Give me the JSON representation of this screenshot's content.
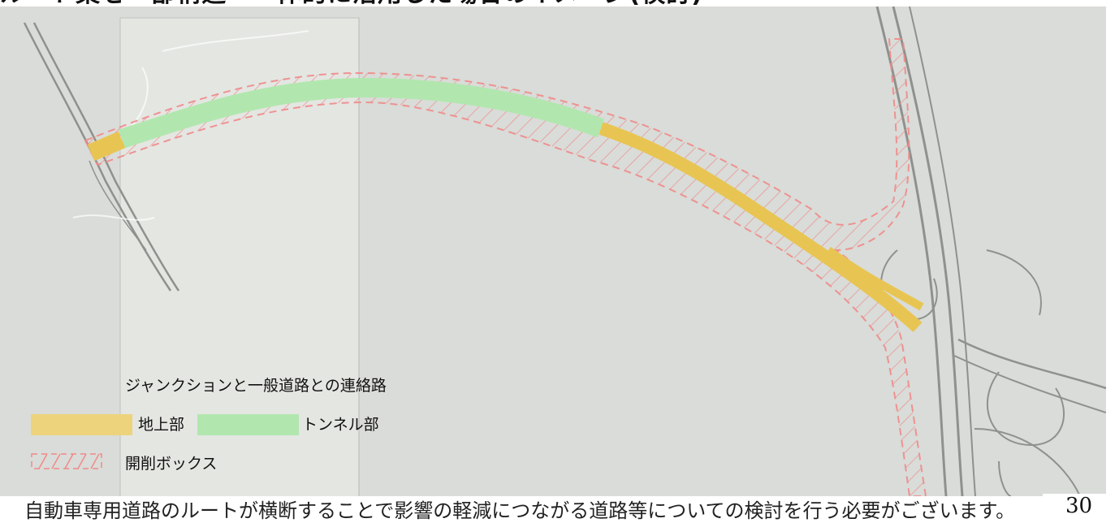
{
  "title": "ルート案を一部構造・一体的に活用した場合のイメージ(検討)",
  "legend": {
    "heading": "ジャンクションと一般道路との連絡路",
    "items": [
      {
        "label": "地上部",
        "color": "#edd37b"
      },
      {
        "label": "トンネル部",
        "color": "#b1e7ae"
      },
      {
        "label": "開削ボックス",
        "color": "#f08a8a"
      }
    ]
  },
  "bottom_text": "自動車専用道路のルートが横断することで影響の軽減につながる道路等についての検討を行う必要がございます。",
  "page_number": "30",
  "colors": {
    "map_background": "#d9dcd8",
    "paper_sheet": "#e4e6e2",
    "surface_road": "#edd37b",
    "tunnel": "#b1e7ae",
    "cut_box_outline": "#f08a8a"
  }
}
